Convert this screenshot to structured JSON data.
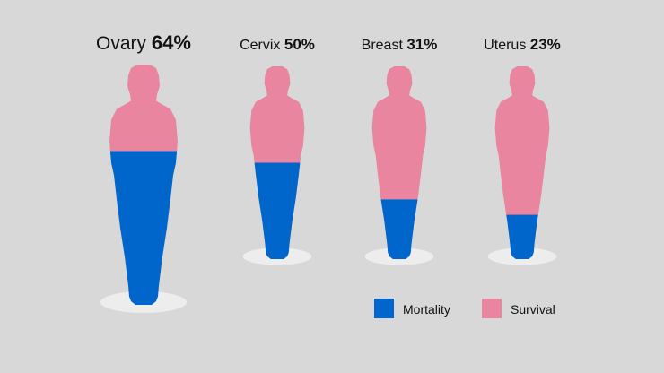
{
  "chart_data": {
    "type": "bar",
    "categories": [
      "Ovary",
      "Cervix",
      "Breast",
      "Uterus"
    ],
    "series": [
      {
        "name": "Mortality",
        "values": [
          64,
          50,
          31,
          23
        ]
      },
      {
        "name": "Survival",
        "values": [
          36,
          50,
          69,
          77
        ]
      }
    ],
    "labels": [
      "64%",
      "50%",
      "31%",
      "23%"
    ],
    "ylim": [
      0,
      100
    ],
    "legend": "bottom-right",
    "grid": false,
    "colors": {
      "Mortality": "#0066cc",
      "Survival": "#e9859e",
      "base": "#ededed",
      "background": "#d8d8d8"
    }
  }
}
